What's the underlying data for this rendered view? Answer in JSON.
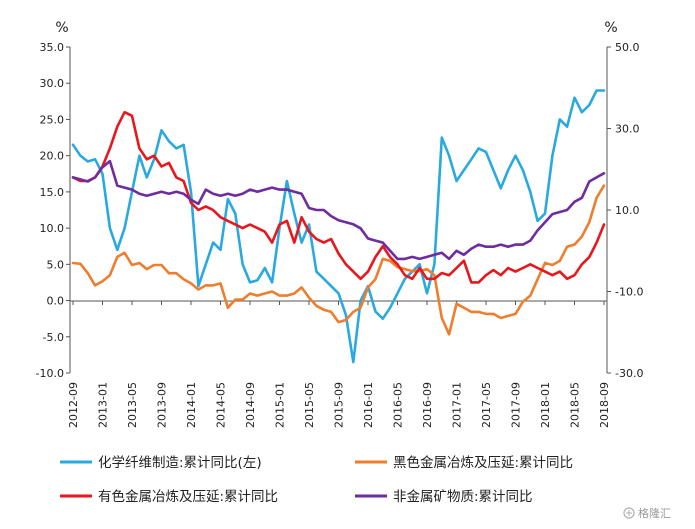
{
  "chart_data": {
    "type": "line",
    "left_axis": {
      "unit": "%",
      "min": -10,
      "max": 35,
      "ticks": [
        "35.0",
        "30.0",
        "25.0",
        "20.0",
        "15.0",
        "10.0",
        "5.0",
        "0.0",
        "-5.0",
        "-10.0"
      ]
    },
    "right_axis": {
      "unit": "%",
      "min": -30,
      "max": 50,
      "ticks": [
        "50.0",
        "30.0",
        "10.0",
        "-10.0",
        "-30.0"
      ]
    },
    "x_tick_labels": [
      "2012-09",
      "2013-01",
      "2013-05",
      "2013-09",
      "2014-01",
      "2014-05",
      "2014-09",
      "2015-01",
      "2015-05",
      "2015-09",
      "2016-01",
      "2016-05",
      "2016-09",
      "2017-01",
      "2017-05",
      "2017-09",
      "2018-01",
      "2018-05",
      "2018-09"
    ],
    "months": 73,
    "series": [
      {
        "name": "化学纤维制造:累计同比(左)",
        "axis": "left",
        "color": "#2aa9e0",
        "values": [
          21.5,
          20,
          19.2,
          19.5,
          17.5,
          10,
          7,
          10,
          15,
          20,
          17,
          19.5,
          23.5,
          22,
          21,
          21.5,
          15,
          2,
          5,
          8,
          7,
          14,
          12,
          5,
          2.5,
          2.8,
          4.5,
          2.5,
          10,
          16.5,
          12,
          8,
          10.5,
          4,
          3,
          2,
          1,
          -2,
          -8.5,
          0,
          2,
          -1.5,
          -2.5,
          -1,
          1,
          3,
          4,
          5,
          1,
          5,
          22.5,
          20,
          16.5,
          18,
          19.5,
          21,
          20.5,
          18,
          15.5,
          18,
          20,
          18,
          15,
          11,
          12,
          20,
          25,
          24,
          28,
          26,
          27,
          29,
          29
        ]
      },
      {
        "name": "黑色金属冶炼及压延:累计同比",
        "axis": "right",
        "color": "#ee7d2e",
        "values": [
          -3,
          -3.2,
          -5.5,
          -8.5,
          -7.5,
          -6,
          -1.5,
          -0.5,
          -3.5,
          -3,
          -4.5,
          -3.5,
          -3.5,
          -5.5,
          -5.5,
          -7,
          -8,
          -9.5,
          -8.5,
          -8.5,
          -8,
          -14,
          -12,
          -12,
          -10.5,
          -11,
          -10.5,
          -10,
          -11,
          -11,
          -10.5,
          -9,
          -11.5,
          -13.5,
          -14.5,
          -15,
          -17.5,
          -17,
          -15,
          -14,
          -9,
          -7,
          -2,
          -2.5,
          -4,
          -4.5,
          -5,
          -5,
          -4.5,
          -6,
          -16.5,
          -20.5,
          -13,
          -14,
          -15,
          -15,
          -15.5,
          -15.5,
          -16.5,
          -16,
          -15.5,
          -12.5,
          -11,
          -7,
          -3,
          -3.5,
          -2.5,
          1,
          1.5,
          3.5,
          7,
          13,
          16
        ]
      },
      {
        "name": "有色金属冶炼及压延:累计同比",
        "axis": "left",
        "color": "#e8161d",
        "values": [
          17,
          16.5,
          16.5,
          17,
          18.5,
          21,
          24,
          26,
          25.5,
          21,
          19.5,
          20,
          18.5,
          19,
          17,
          16.5,
          13.5,
          12.5,
          13,
          12.5,
          11.5,
          11,
          10.5,
          10,
          10.5,
          10,
          9.5,
          8,
          10.5,
          11,
          8,
          11.5,
          9.5,
          8.5,
          8,
          8.5,
          6.5,
          5,
          4,
          3,
          4,
          6,
          7.5,
          6,
          5,
          3.5,
          3,
          4.5,
          3,
          3,
          3.8,
          3.5,
          4.5,
          5.5,
          2.5,
          2.5,
          3.5,
          4.2,
          3.5,
          4.5,
          4,
          4.5,
          5,
          4.5,
          4,
          3.5,
          4,
          3,
          3.5,
          5,
          6,
          8,
          10.5
        ]
      },
      {
        "name": "非金属矿物质:累计同比",
        "axis": "right",
        "color": "#6e2c9e",
        "values": [
          18,
          17.5,
          17,
          18,
          20.5,
          22,
          16,
          15.5,
          15,
          14,
          13.5,
          14,
          14.5,
          14,
          14.5,
          14,
          12.5,
          11.5,
          15,
          14,
          13.5,
          14,
          13.5,
          14,
          15,
          14.5,
          15,
          15.5,
          15,
          15,
          14.5,
          14,
          10.5,
          10,
          10,
          8.5,
          7.5,
          7,
          6.5,
          5.5,
          3,
          2.5,
          2,
          0,
          -2,
          -2,
          -1.5,
          -2,
          -1.5,
          -1,
          -0.5,
          -2,
          0,
          -1,
          0.5,
          1.5,
          1,
          1,
          1.5,
          1,
          1.5,
          1.5,
          2.5,
          5,
          7,
          9,
          9.5,
          10,
          12,
          13,
          17,
          18,
          19
        ]
      }
    ],
    "legend": [
      {
        "label": "化学纤维制造:累计同比(左)",
        "color": "#2aa9e0"
      },
      {
        "label": "黑色金属冶炼及压延:累计同比",
        "color": "#ee7d2e"
      },
      {
        "label": "有色金属冶炼及压延:累计同比",
        "color": "#e8161d"
      },
      {
        "label": "非金属矿物质:累计同比",
        "color": "#6e2c9e"
      }
    ]
  },
  "watermark": {
    "text": "格隆汇",
    "icon": "gelonghui-logo-icon"
  }
}
